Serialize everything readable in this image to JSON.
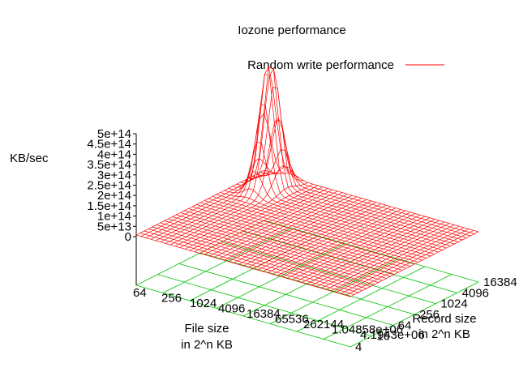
{
  "chart_data": {
    "type": "surface",
    "title": "Iozone performance",
    "zlabel": "KB/sec",
    "xlabel_lines": [
      "File size",
      "in 2^n KB"
    ],
    "ylabel_lines": [
      "Record size",
      "in 2^n KB"
    ],
    "legend": {
      "label": "Random write performance",
      "color": "#ff0000",
      "position": "top-right"
    },
    "z_ticks": [
      "0",
      "5e+13",
      "1e+14",
      "1.5e+14",
      "2e+14",
      "2.5e+14",
      "3e+14",
      "3.5e+14",
      "4e+14",
      "4.5e+14",
      "5e+14"
    ],
    "zlim": [
      0,
      500000000000000
    ],
    "x_ticks": [
      "64",
      "256",
      "1024",
      "4096",
      "16384",
      "65536",
      "262144",
      "1.04858e+06",
      "4.1943e+06"
    ],
    "y_ticks": [
      "4",
      "16",
      "64",
      "256",
      "1024",
      "4096",
      "16384"
    ],
    "xlim": [
      64,
      4194304
    ],
    "ylim": [
      4,
      16384
    ],
    "x_scale": "log",
    "y_scale": "log",
    "grid": true,
    "surface_color": "#ff0000",
    "grid_color": "#00c000",
    "peak": {
      "file_size_kb": 256,
      "record_size_kb": 4096,
      "value": 500000000000000
    },
    "baseline_value": 0
  }
}
